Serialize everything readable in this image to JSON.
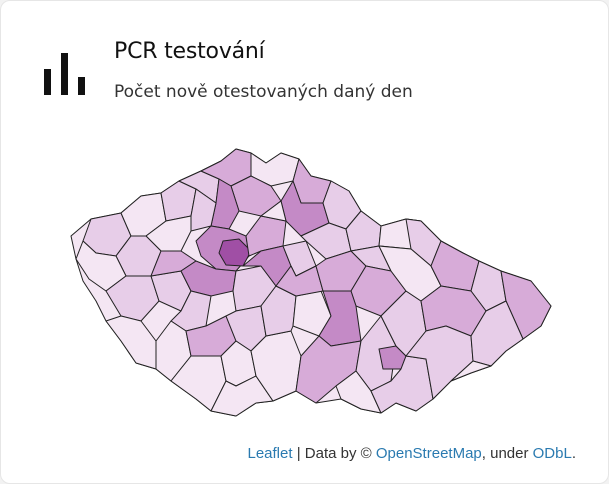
{
  "header": {
    "icon": "bar-chart-icon",
    "title": "PCR testování",
    "subtitle": "Počet nově otestovaných daný den"
  },
  "map": {
    "icon": "czech-districts-choropleth",
    "colors": {
      "lightest": "#f4e6f3",
      "light": "#e7cde8",
      "medium": "#d7abd8",
      "strong": "#c48ac6",
      "darkest": "#a04fa5",
      "stroke": "#222222"
    }
  },
  "attribution": {
    "leaflet": "Leaflet",
    "separator": " | Data by © ",
    "osm": "OpenStreetMap",
    "under": ", under ",
    "odbl": "ODbL",
    "period": "."
  }
}
